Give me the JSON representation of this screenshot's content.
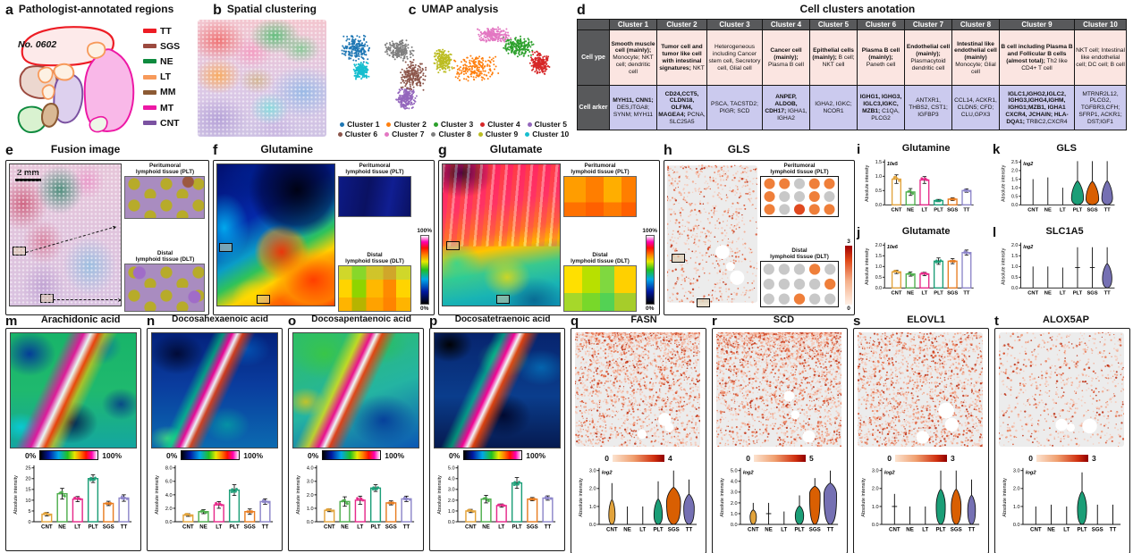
{
  "panels": {
    "a": {
      "label": "a",
      "title": "Pathologist-annotated regions",
      "sample_id": "No. 0602",
      "legend": [
        {
          "label": "TT",
          "color": "#ED1C24"
        },
        {
          "label": "SGS",
          "color": "#9C4A3F"
        },
        {
          "label": "NE",
          "color": "#0E8A3E"
        },
        {
          "label": "LT",
          "color": "#F79A5B"
        },
        {
          "label": "MM",
          "color": "#8C5A33"
        },
        {
          "label": "MT",
          "color": "#ED18A5"
        },
        {
          "label": "CNT",
          "color": "#7B52A1"
        }
      ]
    },
    "b": {
      "label": "b",
      "title": "Spatial clustering"
    },
    "c": {
      "label": "c",
      "title": "UMAP analysis",
      "legend": [
        {
          "label": "Cluster 1",
          "color": "#1F77B4"
        },
        {
          "label": "Cluster 2",
          "color": "#FF7F0E"
        },
        {
          "label": "Cluster 3",
          "color": "#2CA02C"
        },
        {
          "label": "Cluster 4",
          "color": "#D62728"
        },
        {
          "label": "Cluster 5",
          "color": "#9467BD"
        },
        {
          "label": "Cluster 6",
          "color": "#8C564B"
        },
        {
          "label": "Cluster 7",
          "color": "#E377C2"
        },
        {
          "label": "Cluster 8",
          "color": "#7F7F7F"
        },
        {
          "label": "Cluster 9",
          "color": "#BCBD22"
        },
        {
          "label": "Cluster 10",
          "color": "#17BECF"
        }
      ]
    },
    "d": {
      "label": "d",
      "title": "Cell clusters anotation",
      "row_headers": [
        "Cell ype",
        "Cell arker"
      ],
      "columns": [
        {
          "name": "Cluster 1",
          "type_bold": "Smooth muscle cell (mainly);",
          "type_rest": "Monocyte; NKT cell; dendritic cell",
          "marker_bold": "MYH11, CNN1;",
          "marker_rest": "DES,ITGA8; SYNM; MYH11"
        },
        {
          "name": "Cluster 2",
          "type_bold": "Tumor cell and tumor like cell with intestinal signatures;",
          "type_rest": "NKT",
          "marker_bold": "CD24,CCT5, CLDN18, OLFM4, MAGEA4;",
          "marker_rest": "PCNA, SLC25A5"
        },
        {
          "name": "Cluster 3",
          "type_bold": "",
          "type_rest": "Heterogeneous including Cancer stem cell, Secretory cell, Glial cell",
          "marker_bold": "",
          "marker_rest": "PSCA, TACSTD2; PIGR; SCD"
        },
        {
          "name": "Cluster 4",
          "type_bold": "Cancer cell (mainly);",
          "type_rest": "Plasma B cell",
          "marker_bold": "ANPEP, ALDOB, CDH17;",
          "marker_rest": "IGHA1, IGHA2"
        },
        {
          "name": "Cluster 5",
          "type_bold": "Epithelial cells (mainly);",
          "type_rest": "B cell; NKT cell",
          "marker_bold": "",
          "marker_rest": "IGHA2, IGKC; NCOR1"
        },
        {
          "name": "Cluster 6",
          "type_bold": "Plasma B cell (mainly);",
          "type_rest": "Paneth cell",
          "marker_bold": "IGHG1, IGHG3, IGLC3,IGKC, MZB1;",
          "marker_rest": "C1QA, PLCG2"
        },
        {
          "name": "Cluster 7",
          "type_bold": "Endothelial cell (mainly);",
          "type_rest": "Plasmacytoid dendritic cell",
          "marker_bold": "",
          "marker_rest": "ANTXR1, THBS2, CST1; IGFBP3"
        },
        {
          "name": "Cluster 8",
          "type_bold": "Intestinal like endothelial cell (mainly)",
          "type_rest": "Monocyte; Glial cell",
          "marker_bold": "",
          "marker_rest": "CCL14, ACKR1, CLDN5; CFD; CLU,GPX3"
        },
        {
          "name": "Cluster 9",
          "type_bold": "B cell including Plasma B and Follicular B cells (almost total);",
          "type_rest": "Th2 like CD4+ T cell",
          "marker_bold": "IGLC1,IGHG2,IGLC2, IGHG3,IGHG4,IGHM, IGHG1;MZB1, IGHA1 CXCR4, JCHAIN; HLA-DQA1;",
          "marker_rest": "TRBC2,CXCR4"
        },
        {
          "name": "Cluster 10",
          "type_bold": "",
          "type_rest": "NKT cell; Intestinal like endothelial cell; DC cell; B cell",
          "marker_bold": "",
          "marker_rest": "MTRNR2L12, PLCG2, TGFBR3,CFH; SFRP1, ACKR1; DST;IGF1"
        }
      ]
    },
    "e": {
      "label": "e",
      "title": "Fusion image",
      "scale_bar": "2 mm",
      "plt1": "Peritumoral",
      "plt2": "lymphoid tissue (PLT)",
      "dlt1": "Distal",
      "dlt2": "lymphoid tissue (DLT)"
    },
    "f": {
      "label": "f",
      "title": "Glutamine",
      "plt1": "Peritumoral",
      "plt2": "lymphoid tissue (PLT)",
      "dlt1": "Distal",
      "dlt2": "lymphoid tissue (DLT)",
      "cb_max": "100%",
      "cb_min": "0%"
    },
    "g": {
      "label": "g",
      "title": "Glutamate",
      "plt1": "Peritumoral",
      "plt2": "lymphoid tissue (PLT)",
      "dlt1": "Distal",
      "dlt2": "lymphoid tissue (DLT)",
      "cb_max": "100%",
      "cb_min": "0%"
    },
    "h": {
      "label": "h",
      "title": "GLS",
      "plt1": "Peritumoral",
      "plt2": "lymphoid tissue (PLT)",
      "dlt1": "Distal",
      "dlt2": "lymphoid tissue (DLT)",
      "cb_max": "3",
      "cb_min": "0"
    },
    "i": {
      "label": "i"
    },
    "j": {
      "label": "j"
    },
    "k": {
      "label": "k"
    },
    "l": {
      "label": "l"
    },
    "m": {
      "label": "m",
      "cb_min": "0%",
      "cb_max": "100%"
    },
    "n": {
      "label": "n",
      "cb_min": "0%",
      "cb_max": "100%"
    },
    "o": {
      "label": "o",
      "cb_min": "0%",
      "cb_max": "100%"
    },
    "p": {
      "label": "p",
      "cb_min": "0%",
      "cb_max": "100%"
    },
    "q": {
      "label": "q",
      "cb_min": "0",
      "cb_max": "4"
    },
    "r": {
      "label": "r",
      "cb_min": "0",
      "cb_max": "5"
    },
    "s": {
      "label": "s",
      "cb_min": "0",
      "cb_max": "3"
    },
    "t": {
      "label": "t",
      "cb_min": "0",
      "cb_max": "3"
    }
  },
  "chart_data": {
    "i": {
      "type": "bar",
      "title": "Glutamine",
      "note": "10e5",
      "ylabel": "Absolute intensity",
      "categories": [
        "CNT",
        "NE",
        "LT",
        "PLT",
        "SGS",
        "TT"
      ],
      "colors": [
        "#E2A33B",
        "#4FAE4E",
        "#E7298A",
        "#1B9E77",
        "#E87D22",
        "#8D86C9"
      ],
      "values": [
        0.9,
        0.45,
        0.87,
        0.15,
        0.2,
        0.5
      ],
      "errors": [
        0.15,
        0.12,
        0.12,
        0.04,
        0.05,
        0.06
      ],
      "ylim": [
        0,
        1.5
      ],
      "yticks": [
        "0.0",
        "0.5",
        "1.0",
        "1.5"
      ]
    },
    "j": {
      "type": "bar",
      "title": "Glutamate",
      "note": "10e6",
      "ylabel": "Absolute intensity",
      "categories": [
        "CNT",
        "NE",
        "LT",
        "PLT",
        "SGS",
        "TT"
      ],
      "colors": [
        "#E2A33B",
        "#4FAE4E",
        "#E7298A",
        "#1B9E77",
        "#E87D22",
        "#8D86C9"
      ],
      "values": [
        0.75,
        0.65,
        0.65,
        1.25,
        1.25,
        1.65
      ],
      "errors": [
        0.08,
        0.1,
        0.08,
        0.15,
        0.12,
        0.12
      ],
      "ylim": [
        0,
        2.0
      ],
      "yticks": [
        "0.0",
        "0.5",
        "1.0",
        "1.5",
        "2.0"
      ]
    },
    "k": {
      "type": "violin",
      "title": "GLS",
      "note": "log2",
      "ylabel": "Absolute intensity",
      "categories": [
        "CNT",
        "NE",
        "LT",
        "PLT",
        "SGS",
        "TT"
      ],
      "colors": [
        "#E2A33B",
        "#4FAE4E",
        "#E7298A",
        "#1B9E77",
        "#D95F02",
        "#7570B3"
      ],
      "violins": [
        {
          "max": 1.5
        },
        {
          "max": 1.6
        },
        {
          "max": 1.0
        },
        {
          "max": 2.55,
          "b": 0.45,
          "w": 0.9
        },
        {
          "max": 2.55,
          "b": 0.4,
          "w": 0.95
        },
        {
          "max": 2.55,
          "b": 0.45,
          "w": 0.8
        }
      ],
      "ylim": [
        0,
        2.5
      ],
      "yticks": [
        "0.0",
        "0.5",
        "1.0",
        "1.5",
        "2.0",
        "2.5"
      ]
    },
    "l": {
      "type": "violin",
      "title": "SLC1A5",
      "note": "log2",
      "ylabel": "Absolute intensity",
      "categories": [
        "CNT",
        "NE",
        "LT",
        "PLT",
        "SGS",
        "TT"
      ],
      "colors": [
        "#E2A33B",
        "#4FAE4E",
        "#E7298A",
        "#1B9E77",
        "#D95F02",
        "#7570B3"
      ],
      "violins": [
        {
          "max": 1.0
        },
        {
          "max": 1.0
        },
        {
          "max": 0.95
        },
        {
          "max": 1.9,
          "tick": 0.95
        },
        {
          "max": 1.9,
          "tick": 0.95
        },
        {
          "max": 1.9,
          "b": 0.5,
          "w": 0.7
        }
      ],
      "ylim": [
        0,
        2.0
      ],
      "yticks": [
        "0.0",
        "0.5",
        "1.0",
        "1.5",
        "2.0"
      ]
    },
    "m": {
      "type": "bar",
      "title": "Arachidonic acid",
      "note": "",
      "ylabel": "Absolute intensity",
      "categories": [
        "CNT",
        "NE",
        "LT",
        "PLT",
        "SGS",
        "TT"
      ],
      "colors": [
        "#E2A33B",
        "#4FAE4E",
        "#E7298A",
        "#1B9E77",
        "#E87D22",
        "#8D86C9"
      ],
      "values": [
        3.5,
        13,
        10.5,
        20,
        8.5,
        11
      ],
      "errors": [
        0.8,
        2.5,
        1.2,
        1.8,
        1.0,
        1.5
      ],
      "ylim": [
        0,
        25
      ],
      "yticks": [
        "0",
        "5",
        "10",
        "15",
        "20",
        "25"
      ]
    },
    "n": {
      "type": "bar",
      "title": "Docosahexaenoic acid",
      "note": "",
      "ylabel": "Absolute intensity",
      "categories": [
        "CNT",
        "NE",
        "LT",
        "PLT",
        "SGS",
        "TT"
      ],
      "colors": [
        "#E2A33B",
        "#4FAE4E",
        "#E7298A",
        "#1B9E77",
        "#E87D22",
        "#8D86C9"
      ],
      "values": [
        1.0,
        1.5,
        2.5,
        4.7,
        1.5,
        3.0
      ],
      "errors": [
        0.2,
        0.3,
        0.5,
        0.8,
        0.4,
        0.4
      ],
      "ylim": [
        0,
        8
      ],
      "yticks": [
        "0.0",
        "2.0",
        "4.0",
        "6.0",
        "8.0"
      ]
    },
    "o": {
      "type": "bar",
      "title": "Docosapentaenoic acid",
      "note": "",
      "ylabel": "Absolute intensity",
      "categories": [
        "CNT",
        "NE",
        "LT",
        "PLT",
        "SGS",
        "TT"
      ],
      "colors": [
        "#E2A33B",
        "#4FAE4E",
        "#E7298A",
        "#1B9E77",
        "#E87D22",
        "#8D86C9"
      ],
      "values": [
        0.85,
        1.5,
        1.6,
        2.5,
        1.4,
        1.7
      ],
      "errors": [
        0.1,
        0.35,
        0.3,
        0.25,
        0.15,
        0.2
      ],
      "ylim": [
        0,
        4
      ],
      "yticks": [
        "0.0",
        "1.0",
        "2.0",
        "3.0",
        "4.0"
      ]
    },
    "p": {
      "type": "bar",
      "title": "Docosatetraenoic acid",
      "note": "",
      "ylabel": "Absolute intensity",
      "categories": [
        "CNT",
        "NE",
        "LT",
        "PLT",
        "SGS",
        "TT"
      ],
      "colors": [
        "#E2A33B",
        "#4FAE4E",
        "#E7298A",
        "#1B9E77",
        "#E87D22",
        "#8D86C9"
      ],
      "values": [
        1.0,
        2.1,
        1.5,
        3.6,
        2.1,
        2.2
      ],
      "errors": [
        0.15,
        0.35,
        0.15,
        0.5,
        0.15,
        0.2
      ],
      "ylim": [
        0,
        5
      ],
      "yticks": [
        "0.0",
        "1.0",
        "2.0",
        "3.0",
        "4.0",
        "5.0"
      ]
    },
    "q": {
      "type": "violin",
      "title": "FASN",
      "note": "log2",
      "ylabel": "Absolute intensity",
      "categories": [
        "CNT",
        "NE",
        "LT",
        "PLT",
        "SGS",
        "TT"
      ],
      "colors": [
        "#E2A33B",
        "#4FAE4E",
        "#E7298A",
        "#1B9E77",
        "#D95F02",
        "#7570B3"
      ],
      "violins": [
        {
          "max": 2.3,
          "b": 0.6,
          "w": 0.45,
          "tick": 1.0
        },
        {
          "max": 1.0
        },
        {
          "max": 1.0
        },
        {
          "max": 2.4,
          "b": 0.6,
          "w": 0.6
        },
        {
          "max": 3.0,
          "b": 1.3,
          "w": 1.0
        },
        {
          "max": 2.5,
          "b": 1.0,
          "w": 0.75
        }
      ],
      "ylim": [
        0,
        3
      ],
      "yticks": [
        "0.0",
        "1.0",
        "2.0",
        "3.0"
      ]
    },
    "r": {
      "type": "violin",
      "title": "SCD",
      "note": "log2",
      "ylabel": "Absolute intensity",
      "categories": [
        "CNT",
        "NE",
        "LT",
        "PLT",
        "SGS",
        "TT"
      ],
      "colors": [
        "#E2A33B",
        "#4FAE4E",
        "#E7298A",
        "#1B9E77",
        "#D95F02",
        "#7570B3"
      ],
      "violins": [
        {
          "max": 2.0,
          "b": 0.8,
          "w": 0.45
        },
        {
          "max": 2.0,
          "tick": 1.0
        },
        {
          "max": 1.2
        },
        {
          "max": 2.7,
          "b": 0.9,
          "w": 0.6
        },
        {
          "max": 4.3,
          "b": 2.9,
          "w": 0.75
        },
        {
          "max": 5.0,
          "b": 2.9,
          "w": 0.9
        }
      ],
      "ylim": [
        0,
        5
      ],
      "yticks": [
        "0.0",
        "1.0",
        "2.0",
        "3.0",
        "4.0",
        "5.0"
      ]
    },
    "s": {
      "type": "violin",
      "title": "ELOVL1",
      "note": "log2",
      "ylabel": "Absolute intensity",
      "categories": [
        "CNT",
        "NE",
        "LT",
        "PLT",
        "SGS",
        "TT"
      ],
      "colors": [
        "#E2A33B",
        "#4FAE4E",
        "#E7298A",
        "#1B9E77",
        "#D95F02",
        "#7570B3"
      ],
      "violins": [
        {
          "max": 1.7,
          "tick": 1.0
        },
        {
          "max": 1.0
        },
        {
          "max": 1.0
        },
        {
          "max": 3.0,
          "b": 1.1,
          "w": 0.65
        },
        {
          "max": 3.0,
          "b": 1.1,
          "w": 0.7
        },
        {
          "max": 2.5,
          "b": 0.9,
          "w": 0.55
        }
      ],
      "ylim": [
        0,
        3
      ],
      "yticks": [
        "0.0",
        "1.0",
        "2.0",
        "3.0"
      ]
    },
    "t": {
      "type": "violin",
      "title": "ALOX5AP",
      "note": "log2",
      "ylabel": "Absolute intensity",
      "categories": [
        "CNT",
        "NE",
        "LT",
        "PLT",
        "SGS",
        "TT"
      ],
      "colors": [
        "#E2A33B",
        "#4FAE4E",
        "#E7298A",
        "#1B9E77",
        "#D95F02",
        "#7570B3"
      ],
      "violins": [
        {
          "max": 1.0
        },
        {
          "max": 1.1
        },
        {
          "max": 1.0
        },
        {
          "max": 2.9,
          "b": 0.95,
          "w": 0.65
        },
        {
          "max": 1.1
        },
        {
          "max": 1.1
        }
      ],
      "ylim": [
        0,
        3
      ],
      "yticks": [
        "0.0",
        "1.0",
        "2.0",
        "3.0"
      ]
    }
  }
}
